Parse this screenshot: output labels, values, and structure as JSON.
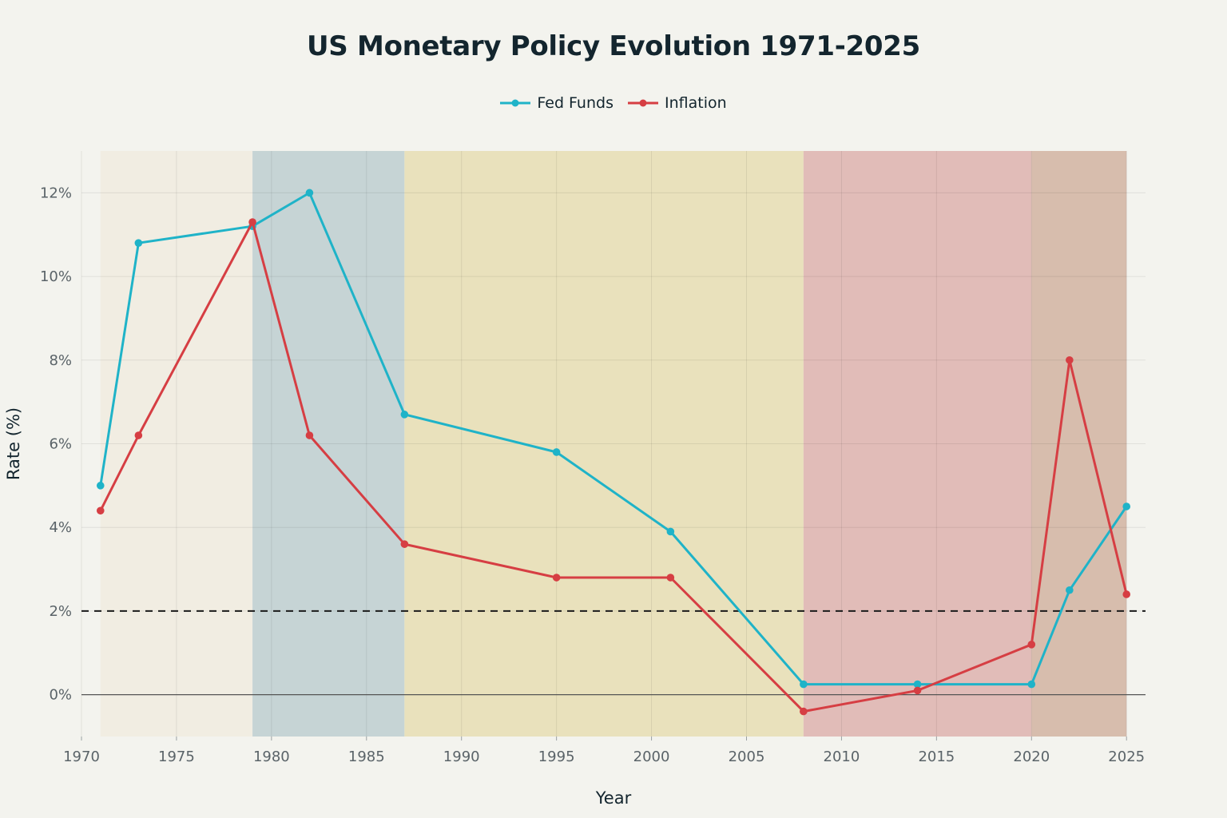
{
  "chart_data": {
    "type": "line",
    "title": "US Monetary Policy Evolution 1971-2025",
    "xlabel": "Year",
    "ylabel": "Rate (%)",
    "xlim": [
      1970,
      2026
    ],
    "ylim": [
      -1,
      13
    ],
    "x_ticks": [
      1970,
      1975,
      1980,
      1985,
      1990,
      1995,
      2000,
      2005,
      2010,
      2015,
      2020,
      2025
    ],
    "y_ticks": [
      0,
      2,
      4,
      6,
      8,
      10,
      12
    ],
    "y_tick_labels": [
      "0%",
      "2%",
      "4%",
      "6%",
      "8%",
      "10%",
      "12%"
    ],
    "legend_position": "top-center",
    "reference_line": {
      "y": 2,
      "style": "dashed",
      "color": "#1a1a1a"
    },
    "zero_line": {
      "y": 0,
      "color": "#555555"
    },
    "shaded_periods": [
      {
        "start": 1971,
        "end": 1979,
        "color": "#f1ede2"
      },
      {
        "start": 1979,
        "end": 1987,
        "color": "#c6d4d5"
      },
      {
        "start": 1987,
        "end": 2008,
        "color": "#e9e1bc"
      },
      {
        "start": 2008,
        "end": 2020,
        "color": "#e1bcb8"
      },
      {
        "start": 2020,
        "end": 2025,
        "color": "#d7bdad"
      }
    ],
    "series": [
      {
        "name": "Fed Funds",
        "color": "#1fb3c8",
        "points": [
          [
            1971,
            5.0
          ],
          [
            1973,
            10.8
          ],
          [
            1979,
            11.2
          ],
          [
            1982,
            12.0
          ],
          [
            1987,
            6.7
          ],
          [
            1995,
            5.8
          ],
          [
            2001,
            3.9
          ],
          [
            2008,
            0.25
          ],
          [
            2014,
            0.25
          ],
          [
            2020,
            0.25
          ],
          [
            2022,
            2.5
          ],
          [
            2025,
            4.5
          ]
        ]
      },
      {
        "name": "Inflation",
        "color": "#d63e43",
        "points": [
          [
            1971,
            4.4
          ],
          [
            1973,
            6.2
          ],
          [
            1979,
            11.3
          ],
          [
            1982,
            6.2
          ],
          [
            1987,
            3.6
          ],
          [
            1995,
            2.8
          ],
          [
            2001,
            2.8
          ],
          [
            2008,
            -0.4
          ],
          [
            2014,
            0.1
          ],
          [
            2020,
            1.2
          ],
          [
            2022,
            8.0
          ],
          [
            2025,
            2.4
          ]
        ]
      }
    ]
  }
}
